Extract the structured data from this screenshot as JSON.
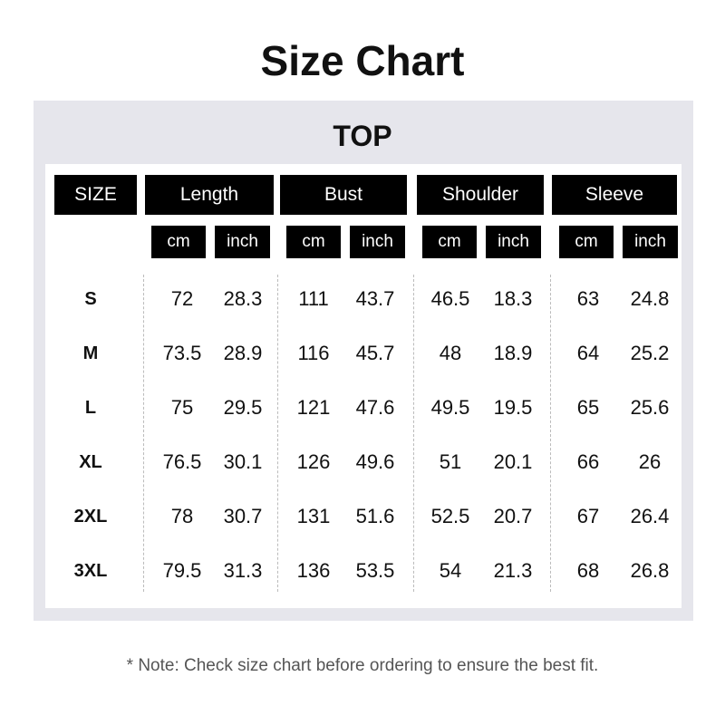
{
  "title": "Size Chart",
  "section": "TOP",
  "headers": [
    "SIZE",
    "Length",
    "Bust",
    "Shoulder",
    "Sleeve"
  ],
  "units": [
    "cm",
    "inch",
    "cm",
    "inch",
    "cm",
    "inch",
    "cm",
    "inch"
  ],
  "rows": [
    {
      "size": "S",
      "values": [
        "72",
        "28.3",
        "111",
        "43.7",
        "46.5",
        "18.3",
        "63",
        "24.8"
      ]
    },
    {
      "size": "M",
      "values": [
        "73.5",
        "28.9",
        "116",
        "45.7",
        "48",
        "18.9",
        "64",
        "25.2"
      ]
    },
    {
      "size": "L",
      "values": [
        "75",
        "29.5",
        "121",
        "47.6",
        "49.5",
        "19.5",
        "65",
        "25.6"
      ]
    },
    {
      "size": "XL",
      "values": [
        "76.5",
        "30.1",
        "126",
        "49.6",
        "51",
        "20.1",
        "66",
        "26"
      ]
    },
    {
      "size": "2XL",
      "values": [
        "78",
        "30.7",
        "131",
        "51.6",
        "52.5",
        "20.7",
        "67",
        "26.4"
      ]
    },
    {
      "size": "3XL",
      "values": [
        "79.5",
        "31.3",
        "136",
        "53.5",
        "54",
        "21.3",
        "68",
        "26.8"
      ]
    }
  ],
  "note": "* Note: Check size chart before ordering to ensure the best fit.",
  "colors": {
    "panel": "#e6e6ec",
    "header_bg": "#000000",
    "header_text": "#ffffff"
  }
}
